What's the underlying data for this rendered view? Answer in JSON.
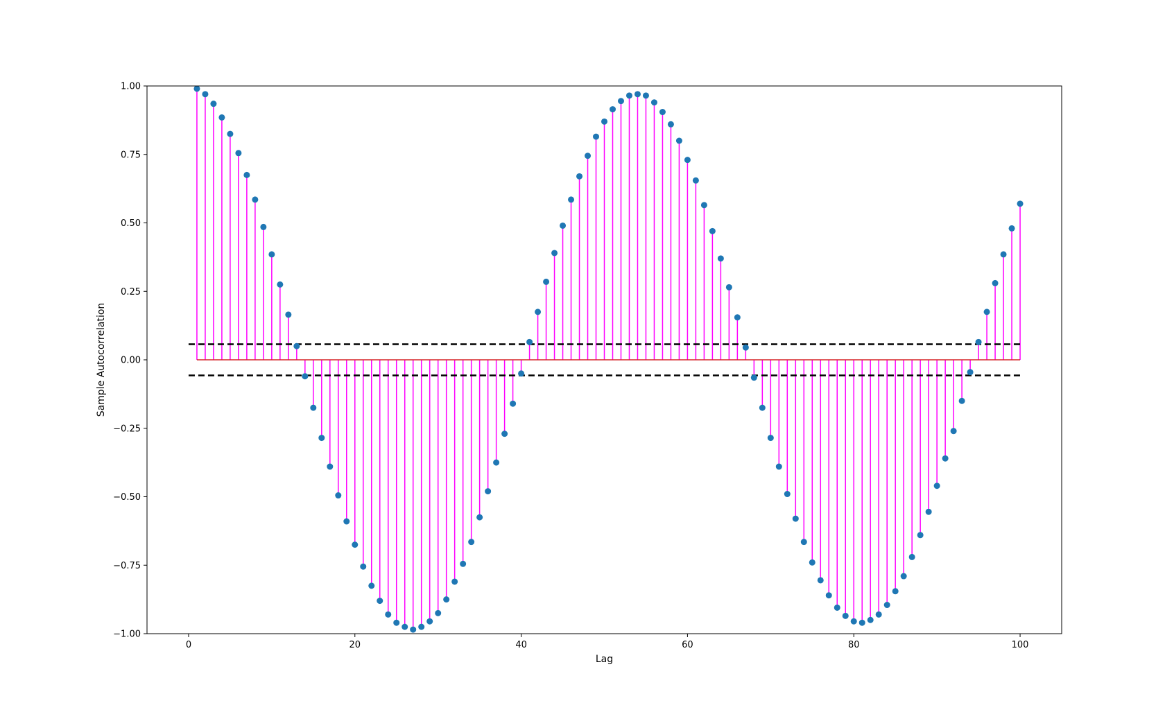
{
  "chart_data": {
    "type": "stem",
    "title": "",
    "xlabel": "Lag",
    "ylabel": "Sample Autocorrelation",
    "xlim": [
      -5,
      105
    ],
    "ylim": [
      -1.0,
      1.0
    ],
    "xticks": [
      0,
      20,
      40,
      60,
      80,
      100
    ],
    "xtick_labels": [
      "0",
      "20",
      "40",
      "60",
      "80",
      "100"
    ],
    "yticks": [
      1.0,
      0.75,
      0.5,
      0.25,
      0.0,
      -0.25,
      -0.5,
      -0.75,
      -1.0
    ],
    "ytick_labels": [
      "1.00",
      "0.75",
      "0.50",
      "0.25",
      "0.00",
      "−0.25",
      "−0.50",
      "−0.75",
      "−1.00"
    ],
    "grid": false,
    "legend": "none",
    "colors": {
      "stem": "#ff00ff",
      "marker": "#1f77b4",
      "baseline": "#d62728",
      "confidence": "#000000"
    },
    "confidence_bounds": [
      0.057,
      -0.057
    ],
    "baseline_y": 0.0,
    "lags": [
      1,
      2,
      3,
      4,
      5,
      6,
      7,
      8,
      9,
      10,
      11,
      12,
      13,
      14,
      15,
      16,
      17,
      18,
      19,
      20,
      21,
      22,
      23,
      24,
      25,
      26,
      27,
      28,
      29,
      30,
      31,
      32,
      33,
      34,
      35,
      36,
      37,
      38,
      39,
      40,
      41,
      42,
      43,
      44,
      45,
      46,
      47,
      48,
      49,
      50,
      51,
      52,
      53,
      54,
      55,
      56,
      57,
      58,
      59,
      60,
      61,
      62,
      63,
      64,
      65,
      66,
      67,
      68,
      69,
      70,
      71,
      72,
      73,
      74,
      75,
      76,
      77,
      78,
      79,
      80,
      81,
      82,
      83,
      84,
      85,
      86,
      87,
      88,
      89,
      90,
      91,
      92,
      93,
      94,
      95,
      96,
      97,
      98,
      99,
      100
    ],
    "values": [
      0.99,
      0.97,
      0.935,
      0.885,
      0.825,
      0.755,
      0.675,
      0.585,
      0.485,
      0.385,
      0.275,
      0.165,
      0.05,
      -0.06,
      -0.175,
      -0.285,
      -0.39,
      -0.495,
      -0.59,
      -0.675,
      -0.755,
      -0.825,
      -0.88,
      -0.93,
      -0.96,
      -0.975,
      -0.985,
      -0.975,
      -0.955,
      -0.925,
      -0.875,
      -0.81,
      -0.745,
      -0.665,
      -0.575,
      -0.48,
      -0.375,
      -0.27,
      -0.16,
      -0.05,
      0.065,
      0.175,
      0.285,
      0.39,
      0.49,
      0.585,
      0.67,
      0.745,
      0.815,
      0.87,
      0.915,
      0.945,
      0.965,
      0.97,
      0.965,
      0.94,
      0.905,
      0.86,
      0.8,
      0.73,
      0.655,
      0.565,
      0.47,
      0.37,
      0.265,
      0.155,
      0.045,
      -0.065,
      -0.175,
      -0.285,
      -0.39,
      -0.49,
      -0.58,
      -0.665,
      -0.74,
      -0.805,
      -0.86,
      -0.905,
      -0.935,
      -0.955,
      -0.96,
      -0.95,
      -0.93,
      -0.895,
      -0.845,
      -0.79,
      -0.72,
      -0.64,
      -0.555,
      -0.46,
      -0.36,
      -0.26,
      -0.15,
      -0.045,
      0.065,
      0.175,
      0.28,
      0.385,
      0.48,
      0.57
    ]
  }
}
